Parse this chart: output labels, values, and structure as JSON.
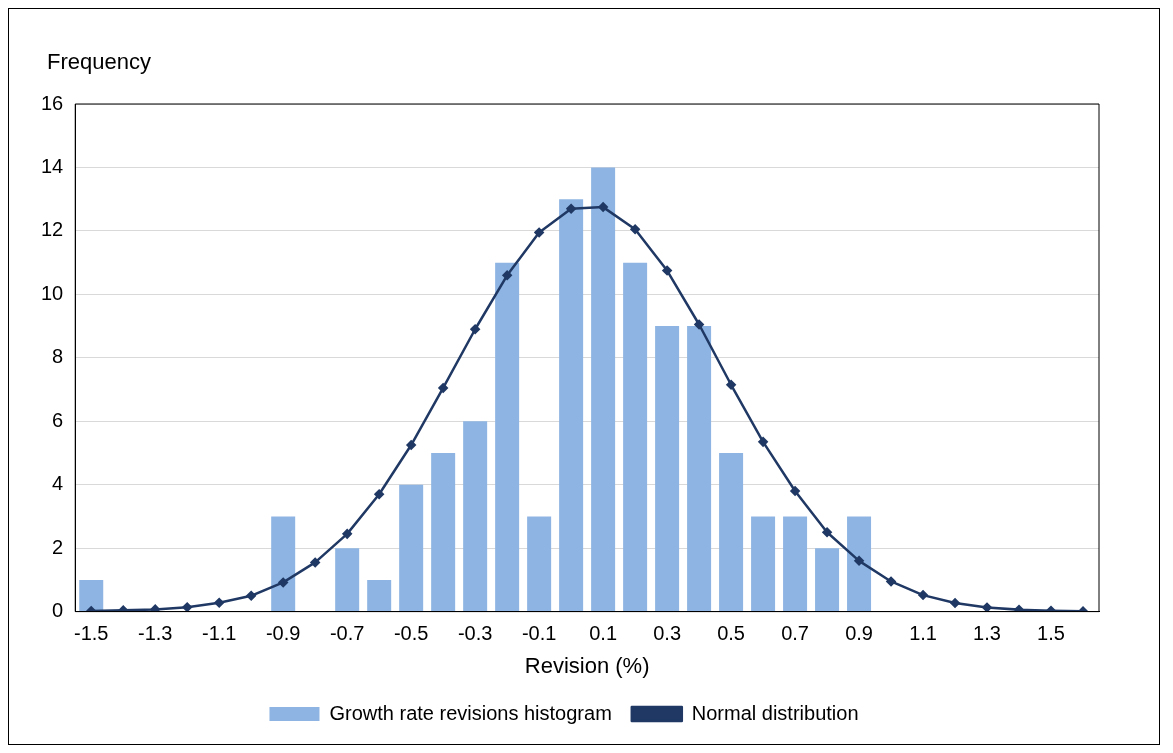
{
  "chart_data": {
    "type": "bar",
    "xlabel": "Revision (%)",
    "ylabel": "Frequency",
    "categories": [
      "-1.5",
      null,
      "-1.3",
      null,
      "-1.1",
      null,
      "-0.9",
      null,
      "-0.7",
      null,
      "-0.5",
      null,
      "-0.3",
      null,
      "-0.1",
      null,
      "0.1",
      null,
      "0.3",
      null,
      "0.5",
      null,
      "0.7",
      null,
      "0.9",
      null,
      "1.1",
      null,
      "1.3",
      null,
      "1.5",
      null
    ],
    "series": [
      {
        "name": "Growth rate revisions histogram",
        "color": "#8db4e2",
        "values": [
          1,
          0,
          0,
          0,
          0,
          0,
          3,
          0,
          2,
          1,
          4,
          5,
          6,
          11,
          3,
          13,
          14,
          11,
          9,
          9,
          5,
          3,
          3,
          2,
          3,
          0,
          0,
          0,
          0,
          0,
          0,
          0
        ]
      },
      {
        "name": "Normal distribution",
        "type": "line",
        "color": "#1f3864",
        "marker": "diamond",
        "values": [
          0.02,
          0.04,
          0.07,
          0.14,
          0.28,
          0.5,
          0.92,
          1.55,
          2.45,
          3.7,
          5.25,
          7.05,
          8.9,
          10.6,
          11.95,
          12.7,
          12.75,
          12.05,
          10.75,
          9.05,
          7.15,
          5.35,
          3.8,
          2.5,
          1.6,
          0.95,
          0.52,
          0.27,
          0.13,
          0.06,
          0.03,
          0.01
        ]
      }
    ],
    "ylim": [
      0,
      16
    ],
    "yticks": [
      0,
      2,
      4,
      6,
      8,
      10,
      12,
      14,
      16
    ],
    "grid": "y",
    "legend": "bottom"
  }
}
